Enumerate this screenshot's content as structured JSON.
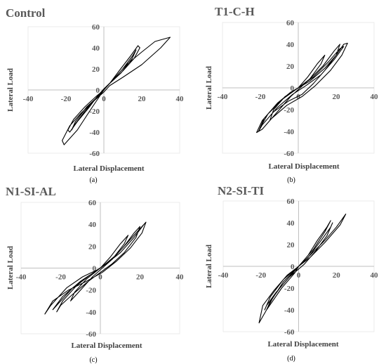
{
  "chart_data": [
    {
      "type": "line",
      "title": "Control",
      "caption": "(a)",
      "xlabel": "Lateral Displacement",
      "ylabel": "Lateral Load",
      "xlim": [
        -40,
        40
      ],
      "ylim": [
        -60,
        60
      ],
      "xticks": [
        "-40",
        "-20",
        "0",
        "20",
        "40"
      ],
      "yticks": [
        "60",
        "40",
        "20",
        "0",
        "-20",
        "-40",
        "-60"
      ],
      "grid": false,
      "series": [
        {
          "x": [
            0,
            3,
            8,
            14,
            18,
            19,
            16,
            10,
            4,
            0,
            -3,
            -8,
            -14,
            -18,
            -19,
            -16,
            -10,
            -4,
            0,
            4,
            10,
            15,
            17,
            15,
            9,
            3,
            0,
            -4,
            -10,
            -15,
            -17,
            -15,
            -9,
            -3,
            0,
            5,
            12,
            20,
            27,
            35,
            30,
            20,
            10,
            3,
            0,
            -5,
            -12,
            -18,
            -22,
            -21,
            -14,
            -6,
            0
          ],
          "y": [
            0,
            6,
            18,
            32,
            42,
            40,
            30,
            18,
            8,
            1,
            -5,
            -17,
            -30,
            -40,
            -38,
            -28,
            -16,
            -6,
            0,
            8,
            20,
            32,
            38,
            30,
            16,
            6,
            0,
            -8,
            -20,
            -32,
            -38,
            -30,
            -16,
            -6,
            0,
            10,
            24,
            36,
            46,
            50,
            40,
            24,
            12,
            4,
            -2,
            -10,
            -22,
            -34,
            -48,
            -52,
            -38,
            -16,
            0
          ]
        }
      ]
    },
    {
      "type": "line",
      "title": "T1-C-H",
      "caption": "(b)",
      "xlabel": "Lateral Displacement",
      "ylabel": "Lateral Load",
      "xlim": [
        -40,
        40
      ],
      "ylim": [
        -60,
        60
      ],
      "xticks": [
        "-40",
        "-20",
        "0",
        "20",
        "40"
      ],
      "yticks": [
        "60",
        "40",
        "20",
        "0",
        "-20",
        "-40",
        "-60"
      ],
      "grid": false,
      "series": [
        {
          "x": [
            0,
            5,
            10,
            14,
            12,
            6,
            1,
            -4,
            -10,
            -15,
            -13,
            -7,
            0,
            6,
            13,
            19,
            22,
            20,
            14,
            8,
            2,
            -5,
            -13,
            -19,
            -21,
            -18,
            -11,
            -4,
            0,
            6,
            14,
            20,
            24,
            26,
            23,
            17,
            9,
            2,
            -6,
            -14,
            -19,
            -22,
            -19,
            -12,
            -4,
            0,
            8,
            16,
            22,
            24,
            19,
            12,
            4,
            -3,
            -11,
            -17,
            -20,
            -16,
            -8,
            0
          ],
          "y": [
            0,
            10,
            22,
            30,
            22,
            8,
            0,
            -8,
            -20,
            -30,
            -20,
            -8,
            0,
            8,
            20,
            34,
            40,
            30,
            16,
            4,
            -6,
            -12,
            -22,
            -34,
            -40,
            -28,
            -14,
            -4,
            0,
            6,
            18,
            30,
            40,
            41,
            30,
            16,
            2,
            -8,
            -16,
            -28,
            -38,
            -41,
            -30,
            -16,
            -4,
            0,
            10,
            24,
            36,
            38,
            26,
            12,
            2,
            -6,
            -18,
            -30,
            -36,
            -24,
            -10,
            0
          ]
        }
      ]
    },
    {
      "type": "line",
      "title": "N1-SI-AL",
      "caption": "(c)",
      "xlabel": "Lateral Displacement",
      "ylabel": "Lateral Load",
      "xlim": [
        -40,
        40
      ],
      "ylim": [
        -60,
        60
      ],
      "xticks": [
        "-40",
        "-20",
        "0",
        "20",
        "40"
      ],
      "yticks": [
        "60",
        "40",
        "20",
        "0",
        "-20",
        "-40",
        "-60"
      ],
      "grid": false,
      "series": [
        {
          "x": [
            0,
            5,
            10,
            14,
            12,
            6,
            1,
            -4,
            -10,
            -15,
            -13,
            -7,
            0,
            6,
            12,
            17,
            20,
            18,
            12,
            6,
            0,
            -6,
            -14,
            -20,
            -22,
            -19,
            -12,
            -5,
            0,
            6,
            13,
            19,
            23,
            21,
            15,
            8,
            1,
            -7,
            -16,
            -24,
            -28,
            -25,
            -17,
            -9,
            -2,
            0,
            8,
            15,
            20,
            22,
            17,
            10,
            3,
            -5,
            -14,
            -20,
            -24,
            -19,
            -10,
            0
          ],
          "y": [
            0,
            10,
            22,
            30,
            22,
            8,
            0,
            -8,
            -20,
            -30,
            -22,
            -10,
            0,
            8,
            20,
            32,
            38,
            28,
            14,
            4,
            -4,
            -12,
            -24,
            -34,
            -40,
            -30,
            -16,
            -6,
            0,
            8,
            22,
            34,
            42,
            32,
            18,
            6,
            -4,
            -12,
            -20,
            -30,
            -42,
            -34,
            -18,
            -8,
            -2,
            0,
            12,
            26,
            36,
            40,
            28,
            14,
            4,
            -6,
            -18,
            -30,
            -38,
            -26,
            -12,
            0
          ]
        }
      ]
    },
    {
      "type": "line",
      "title": "N2-SI-TI",
      "caption": "(d)",
      "xlabel": "Lateral Displacement",
      "ylabel": "Lateral Load",
      "xlim": [
        -40,
        40
      ],
      "ylim": [
        -60,
        60
      ],
      "xticks": [
        "-40",
        "-20",
        "0",
        "20",
        "40"
      ],
      "yticks": [
        "60",
        "40",
        "20",
        "0",
        "-20",
        "-40",
        "-60"
      ],
      "grid": false,
      "series": [
        {
          "x": [
            0,
            5,
            10,
            15,
            17,
            14,
            8,
            2,
            -4,
            -10,
            -15,
            -17,
            -14,
            -8,
            0,
            5,
            12,
            17,
            18,
            15,
            9,
            3,
            -5,
            -12,
            -17,
            -18,
            -15,
            -8,
            0,
            6,
            14,
            20,
            25,
            22,
            14,
            6,
            0,
            -6,
            -13,
            -19,
            -21,
            -17,
            -9,
            -2,
            0
          ],
          "y": [
            0,
            10,
            24,
            36,
            42,
            32,
            16,
            4,
            -8,
            -20,
            -32,
            -40,
            -30,
            -14,
            0,
            8,
            24,
            36,
            40,
            28,
            14,
            2,
            -10,
            -24,
            -36,
            -40,
            -28,
            -12,
            0,
            10,
            24,
            36,
            48,
            38,
            22,
            8,
            0,
            -8,
            -22,
            -36,
            -52,
            -40,
            -20,
            -6,
            0
          ]
        }
      ]
    }
  ]
}
